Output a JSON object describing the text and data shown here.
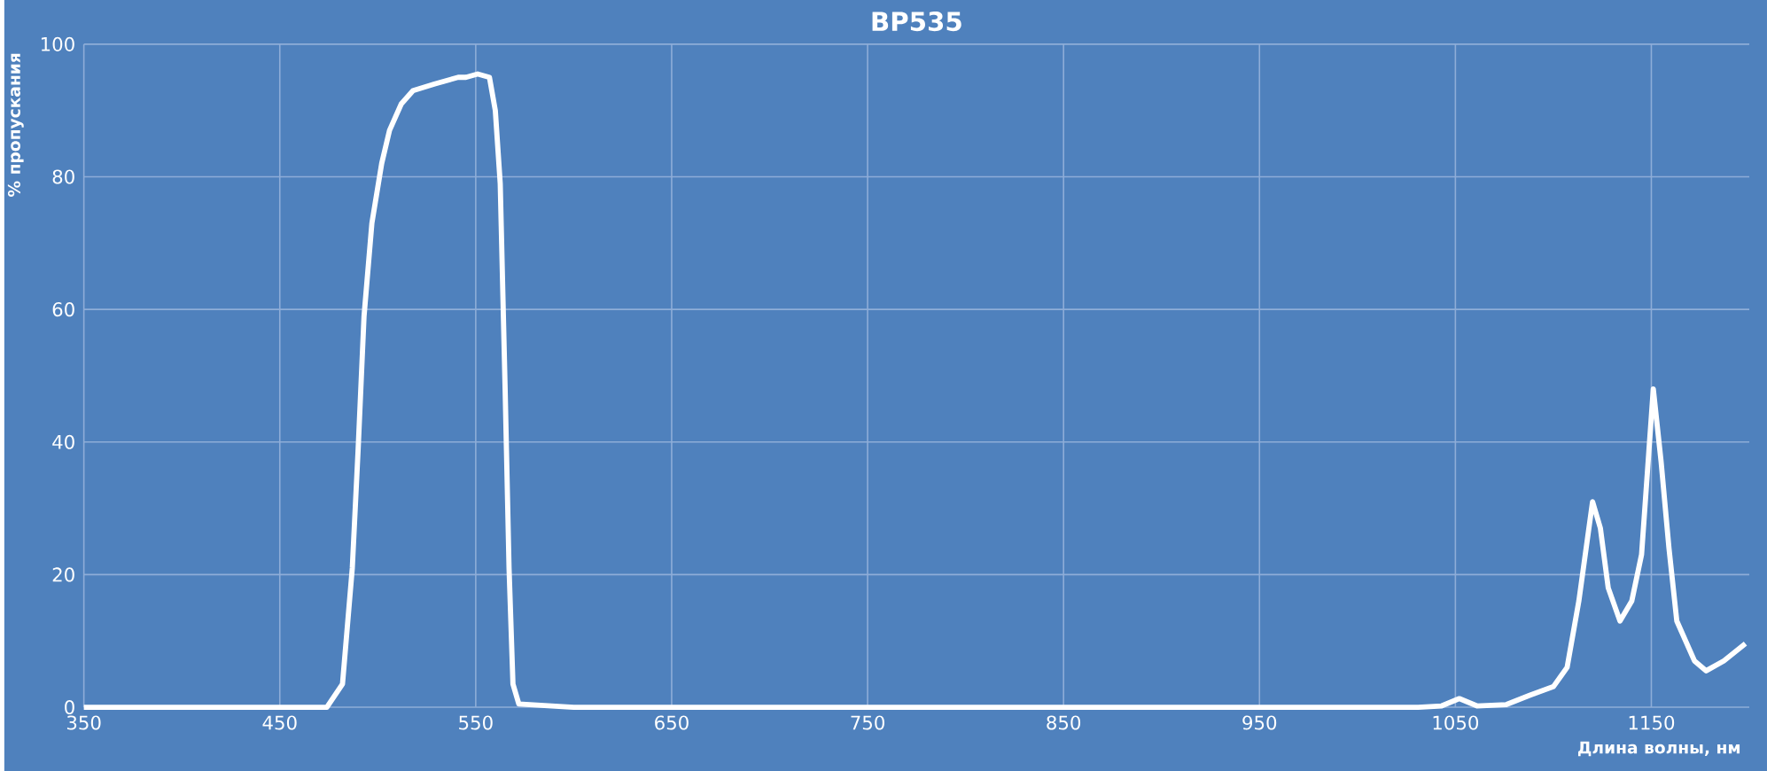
{
  "chart_data": {
    "type": "line",
    "title": "BP535",
    "xlabel": "Длина волны, нм",
    "ylabel": "% пропускания",
    "x": [
      350,
      450,
      474,
      482,
      487,
      490,
      493,
      497,
      502,
      506,
      512,
      518,
      529,
      541,
      545,
      551,
      557,
      560,
      562.5,
      565,
      567,
      569,
      572,
      600,
      700,
      800,
      900,
      1000,
      1031,
      1043,
      1052,
      1061,
      1076,
      1088,
      1100,
      1107,
      1113,
      1120,
      1124,
      1128,
      1134,
      1140,
      1145,
      1151,
      1155,
      1159,
      1163,
      1172,
      1178,
      1187,
      1198
    ],
    "series": [
      {
        "color": "#ffffff",
        "values": [
          0,
          0,
          0,
          3.5,
          21,
          39,
          59,
          73,
          82,
          87,
          91,
          93,
          94,
          95,
          95,
          95.5,
          95,
          90,
          79,
          48,
          21,
          3.5,
          0.5,
          0,
          0,
          0,
          0,
          0,
          0,
          0.2,
          1.3,
          0.2,
          0.4,
          1.8,
          3.1,
          6,
          16,
          31,
          27,
          18,
          13,
          16,
          23,
          48,
          37,
          24,
          13,
          7,
          5.5,
          7,
          9.6
        ]
      }
    ],
    "xlim": [
      350,
      1200
    ],
    "xticks": [
      350,
      450,
      550,
      650,
      750,
      850,
      950,
      1050,
      1150
    ],
    "ylim": [
      0,
      100
    ],
    "yticks": [
      0,
      20,
      40,
      60,
      80,
      100
    ],
    "grid": true,
    "marker": "none",
    "line_style": "solid"
  }
}
